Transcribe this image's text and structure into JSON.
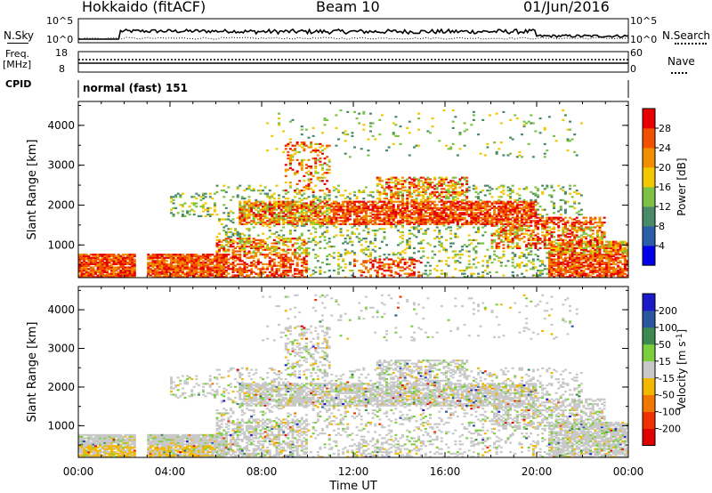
{
  "header": {
    "radar": "Hokkaido (fitACF)",
    "beam": "Beam 10",
    "date": "01/Jun/2016"
  },
  "noise_panel": {
    "left_label": "N.Sky",
    "right_label": "N.Search",
    "left_ticks": [
      "10^5",
      "10^0"
    ],
    "right_ticks": [
      "10^5",
      "10^0"
    ]
  },
  "freq_panel": {
    "left_label_1": "Freq.",
    "left_label_2": "[MHz]",
    "right_label": "Nave",
    "left_ticks": [
      "18",
      "8"
    ],
    "right_ticks": [
      "60",
      "0"
    ]
  },
  "cpid_panel": {
    "label": "CPID",
    "mode": "normal (fast) 151"
  },
  "chart_data": [
    {
      "type": "heatmap",
      "name": "power",
      "xlabel": "",
      "ylabel": "Slant Range [km]",
      "xlim": [
        0,
        24
      ],
      "ylim": [
        180,
        4600
      ],
      "yticks": [
        1000,
        2000,
        3000,
        4000
      ],
      "xticks": [
        "00:00",
        "04:00",
        "08:00",
        "12:00",
        "16:00",
        "20:00",
        "00:00"
      ],
      "colorbar": {
        "label": "Power [dB]",
        "ticks": [
          "4",
          "8",
          "12",
          "16",
          "20",
          "24",
          "28"
        ],
        "colors": [
          "#0000e8",
          "#2b5ea8",
          "#4a8a6a",
          "#7cc244",
          "#f2c800",
          "#f09000",
          "#f05000",
          "#e80000"
        ]
      }
    },
    {
      "type": "heatmap",
      "name": "velocity",
      "xlabel": "Time UT",
      "ylabel": "Slant Range [km]",
      "xlim": [
        0,
        24
      ],
      "ylim": [
        180,
        4600
      ],
      "yticks": [
        1000,
        2000,
        3000,
        4000
      ],
      "xticks": [
        "00:00",
        "04:00",
        "08:00",
        "12:00",
        "16:00",
        "20:00",
        "00:00"
      ],
      "colorbar": {
        "label": "Velocity [m s^-1]",
        "ticks": [
          "200",
          "100",
          "50",
          "15",
          "-15",
          "-50",
          "-100",
          "-200"
        ],
        "colors": [
          "#1a1ac8",
          "#2a56a0",
          "#3c8a50",
          "#7ccf3c",
          "#c8c8c8",
          "#f2b800",
          "#f07800",
          "#f03000",
          "#e00000"
        ]
      }
    }
  ]
}
